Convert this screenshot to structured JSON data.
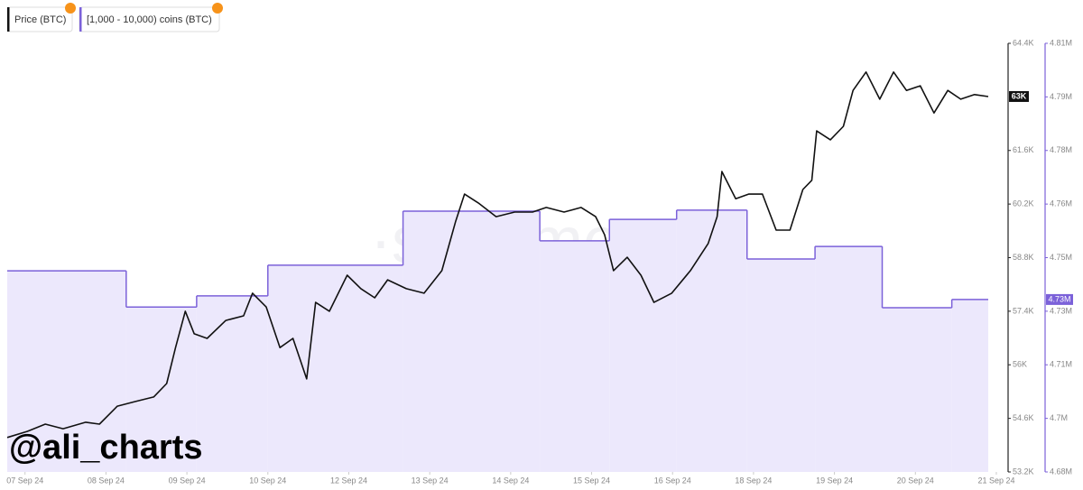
{
  "chart_data": {
    "type": "line",
    "watermark": "·santiment·",
    "annotation": "@ali_charts",
    "xlim": [
      -0.22,
      11.9
    ],
    "xticks": [
      {
        "value": 0,
        "label": "07 Sep 24"
      },
      {
        "value": 1,
        "label": "08 Sep 24"
      },
      {
        "value": 2,
        "label": "09 Sep 24"
      },
      {
        "value": 3,
        "label": "10 Sep 24"
      },
      {
        "value": 4,
        "label": "12 Sep 24"
      },
      {
        "value": 5,
        "label": "13 Sep 24"
      },
      {
        "value": 6,
        "label": "14 Sep 24"
      },
      {
        "value": 7,
        "label": "15 Sep 24"
      },
      {
        "value": 8,
        "label": "16 Sep 24"
      },
      {
        "value": 9,
        "label": "18 Sep 24"
      },
      {
        "value": 10,
        "label": "19 Sep 24"
      },
      {
        "value": 11,
        "label": "20 Sep 24"
      },
      {
        "value": 12,
        "label": "21 Sep 24"
      }
    ],
    "ylim": [
      53200,
      64400
    ],
    "yticks": [
      {
        "value": 53200,
        "label": "53.2K"
      },
      {
        "value": 54600,
        "label": "54.6K"
      },
      {
        "value": 56000,
        "label": "56K"
      },
      {
        "value": 57400,
        "label": "57.4K"
      },
      {
        "value": 58800,
        "label": "58.8K"
      },
      {
        "value": 60200,
        "label": "60.2K"
      },
      {
        "value": 61600,
        "label": "61.6K"
      },
      {
        "value": 64400,
        "label": "64.4K"
      }
    ],
    "y2lim": [
      4680000,
      4810000
    ],
    "y2ticks": [
      {
        "value": 4680000,
        "label": "4.68M"
      },
      {
        "value": 4696250,
        "label": "4.7M"
      },
      {
        "value": 4712500,
        "label": "4.71M"
      },
      {
        "value": 4728750,
        "label": "4.73M"
      },
      {
        "value": 4745000,
        "label": "4.75M"
      },
      {
        "value": 4761250,
        "label": "4.76M"
      },
      {
        "value": 4777500,
        "label": "4.78M"
      },
      {
        "value": 4793750,
        "label": "4.79M"
      },
      {
        "value": 4810000,
        "label": "4.81M"
      }
    ],
    "series": [
      {
        "name": "Price (BTC)",
        "color": "#111111",
        "end_label": "63K",
        "x": [
          -0.22,
          0.03,
          0.25,
          0.47,
          0.75,
          0.92,
          1.14,
          1.36,
          1.59,
          1.75,
          1.86,
          1.98,
          2.09,
          2.25,
          2.48,
          2.7,
          2.81,
          2.98,
          3.15,
          3.31,
          3.48,
          3.59,
          3.76,
          3.98,
          4.15,
          4.32,
          4.48,
          4.71,
          4.93,
          5.15,
          5.32,
          5.43,
          5.6,
          5.82,
          6.05,
          6.27,
          6.44,
          6.66,
          6.87,
          7.05,
          7.16,
          7.27,
          7.44,
          7.61,
          7.77,
          7.99,
          8.22,
          8.44,
          8.55,
          8.61,
          8.78,
          8.94,
          9.11,
          9.28,
          9.45,
          9.61,
          9.72,
          9.78,
          9.95,
          10.11,
          10.23,
          10.39,
          10.56,
          10.73,
          10.89,
          11.06,
          11.23,
          11.4,
          11.56,
          11.73,
          11.9
        ],
        "values": [
          54100,
          54260,
          54450,
          54330,
          54500,
          54450,
          54920,
          55040,
          55160,
          55510,
          56450,
          57400,
          56810,
          56690,
          57160,
          57280,
          57870,
          57510,
          56450,
          56690,
          55630,
          57630,
          57400,
          58340,
          57990,
          57750,
          58220,
          57990,
          57870,
          58460,
          59750,
          60460,
          60230,
          59870,
          59990,
          59990,
          60110,
          59990,
          60110,
          59870,
          59400,
          58460,
          58810,
          58340,
          57630,
          57870,
          58460,
          59170,
          59870,
          61050,
          60340,
          60460,
          60460,
          59520,
          59520,
          60580,
          60820,
          62110,
          61880,
          62230,
          63170,
          63650,
          62940,
          63650,
          63170,
          63290,
          62580,
          63170,
          62940,
          63060,
          63010
        ]
      },
      {
        "name": "[1,000 - 10,000) coins (BTC)",
        "color": "#7b61d9",
        "axis": "y2",
        "step": "post",
        "end_label": "4.73M",
        "x": [
          -0.22,
          1.25,
          2.12,
          3.0,
          4.67,
          6.36,
          7.22,
          8.05,
          8.92,
          9.76,
          10.59,
          11.45
        ],
        "values": [
          4741000,
          4730000,
          4733400,
          4742700,
          4759100,
          4750100,
          4756600,
          4759400,
          4744600,
          4748400,
          4729800,
          4732300
        ]
      }
    ]
  }
}
